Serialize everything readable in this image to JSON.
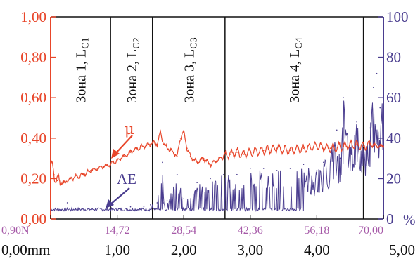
{
  "chart_data": {
    "type": "line",
    "colors": {
      "mu": "#e8462a",
      "ae": "#4a3d8f",
      "force_axis": "#a65aa8",
      "zone_lines": "#111111"
    },
    "left_axis": {
      "ylim": [
        0,
        1
      ],
      "tick_labels": [
        "0,00",
        "0,20",
        "0,40",
        "0,60",
        "0,80",
        "1,00"
      ],
      "tick_values": [
        0,
        0.2,
        0.4,
        0.6,
        0.8,
        1.0
      ]
    },
    "right_axis": {
      "ylim": [
        0,
        100
      ],
      "tick_labels": [
        "0",
        "20",
        "40",
        "60",
        "80",
        "100"
      ],
      "tick_values": [
        0,
        20,
        40,
        60,
        80,
        100
      ],
      "unit": "%"
    },
    "force_axis": {
      "xlim": [
        0.9,
        70
      ],
      "tick_labels": [
        "0,90N",
        "14,72",
        "28,54",
        "42,36",
        "56,18",
        "70,00"
      ],
      "tick_values": [
        0.9,
        14.72,
        28.54,
        42.36,
        56.18,
        70.0
      ]
    },
    "distance_axis": {
      "xlim": [
        0,
        5
      ],
      "tick_labels": [
        "0,00mm",
        "1,00",
        "2,00",
        "3,00",
        "4,00",
        "5,00"
      ],
      "tick_values": [
        0,
        1,
        2,
        3,
        4,
        5
      ]
    },
    "zones": [
      {
        "label": "Зона 1, L",
        "sub": "C1",
        "start": 0.0,
        "end": 0.9
      },
      {
        "label": "Зона 2, L",
        "sub": "C2",
        "start": 0.9,
        "end": 1.53
      },
      {
        "label": "Зона 3, L",
        "sub": "C3",
        "start": 1.53,
        "end": 2.62
      },
      {
        "label": "Зона 4, L",
        "sub": "C4",
        "start": 2.62,
        "end": 4.7
      }
    ],
    "zone_boundaries": [
      0.9,
      1.53,
      2.62,
      4.7
    ],
    "series": [
      {
        "name": "μ",
        "axis": "left",
        "x": [
          0.0,
          0.05,
          0.1,
          0.2,
          0.3,
          0.4,
          0.5,
          0.6,
          0.7,
          0.8,
          0.9,
          1.0,
          1.1,
          1.2,
          1.3,
          1.4,
          1.5,
          1.55,
          1.6,
          1.65,
          1.7,
          1.8,
          1.9,
          1.95,
          2.0,
          2.05,
          2.1,
          2.2,
          2.3,
          2.4,
          2.5,
          2.6,
          2.7,
          2.8,
          2.9,
          3.0,
          3.2,
          3.4,
          3.6,
          3.8,
          4.0,
          4.2,
          4.4,
          4.6,
          4.7,
          4.8,
          4.9,
          5.0
        ],
        "values": [
          0.27,
          0.22,
          0.19,
          0.18,
          0.2,
          0.21,
          0.22,
          0.24,
          0.25,
          0.26,
          0.27,
          0.29,
          0.31,
          0.33,
          0.35,
          0.36,
          0.37,
          0.38,
          0.37,
          0.43,
          0.37,
          0.34,
          0.31,
          0.4,
          0.43,
          0.35,
          0.31,
          0.28,
          0.3,
          0.27,
          0.29,
          0.31,
          0.32,
          0.33,
          0.32,
          0.33,
          0.34,
          0.35,
          0.34,
          0.35,
          0.36,
          0.35,
          0.36,
          0.37,
          0.36,
          0.37,
          0.36,
          0.36
        ]
      },
      {
        "name": "AE",
        "axis": "right",
        "x": [
          0.0,
          0.2,
          0.25,
          0.3,
          0.5,
          0.9,
          1.2,
          1.4,
          1.5,
          1.6,
          1.68,
          1.7,
          1.75,
          1.9,
          2.0,
          2.2,
          2.4,
          2.6,
          2.8,
          3.0,
          3.2,
          3.4,
          3.6,
          3.8,
          4.0,
          4.1,
          4.2,
          4.3,
          4.35,
          4.4,
          4.5,
          4.6,
          4.7,
          4.8,
          4.85,
          4.9,
          4.95,
          5.0
        ],
        "values": [
          4,
          4,
          8,
          4,
          4,
          4,
          6,
          6,
          7,
          8,
          28,
          8,
          9,
          22,
          10,
          18,
          20,
          22,
          22,
          25,
          25,
          24,
          25,
          27,
          24,
          28,
          33,
          44,
          30,
          60,
          38,
          48,
          36,
          45,
          65,
          72,
          55,
          60
        ]
      }
    ],
    "series_labels": {
      "mu": "μ",
      "ae": "AE"
    }
  }
}
